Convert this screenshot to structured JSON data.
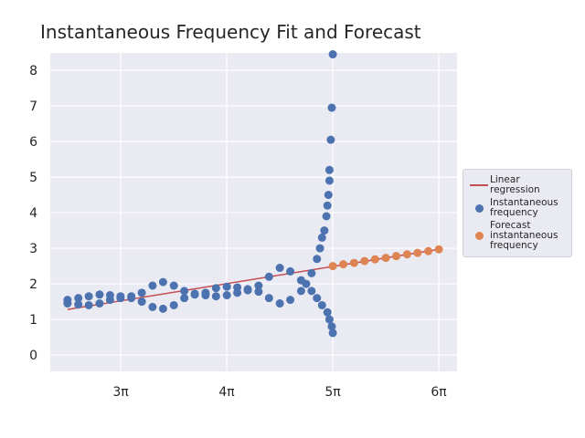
{
  "chart_data": {
    "type": "scatter",
    "title": "Instantaneous Frequency Fit and Forecast",
    "xlim": [
      7.339,
      19.39
    ],
    "ylim": [
      -0.46,
      8.49
    ],
    "xticks": [
      {
        "value": 9.4248,
        "label": "3π"
      },
      {
        "value": 12.5664,
        "label": "4π"
      },
      {
        "value": 15.708,
        "label": "5π"
      },
      {
        "value": 18.8496,
        "label": "6π"
      }
    ],
    "yticks": [
      0,
      1,
      2,
      3,
      4,
      5,
      6,
      7,
      8
    ],
    "grid": true,
    "legend": "right",
    "series": [
      {
        "name": "Linear regression",
        "type": "line",
        "color": "#c44e52",
        "x": [
          7.85,
          18.85
        ],
        "values": [
          1.28,
          2.97
        ]
      },
      {
        "name": "Instantaneous frequency",
        "type": "scatter",
        "color": "#4c72b0",
        "x": [
          7.85,
          8.17,
          8.48,
          8.8,
          9.11,
          9.42,
          9.74,
          10.05,
          10.37,
          10.68,
          11.0,
          11.31,
          11.62,
          11.94,
          12.25,
          12.57,
          12.88,
          13.19,
          13.51,
          13.82,
          14.14,
          14.45,
          14.77,
          14.92,
          7.85,
          8.17,
          8.48,
          8.8,
          9.11,
          9.42,
          9.74,
          10.05,
          10.37,
          10.68,
          11.0,
          11.31,
          11.62,
          11.94,
          12.25,
          12.57,
          12.88,
          13.19,
          13.51,
          13.82,
          14.14,
          14.45,
          14.77,
          15.08,
          15.24,
          15.33,
          15.39,
          15.46,
          15.52,
          15.55,
          15.58,
          15.61,
          15.61,
          15.65,
          15.68,
          15.71,
          15.08,
          15.24,
          15.39,
          15.55,
          15.61,
          15.68,
          15.71
        ],
        "values": [
          1.55,
          1.6,
          1.65,
          1.7,
          1.68,
          1.65,
          1.65,
          1.75,
          1.95,
          2.05,
          1.95,
          1.8,
          1.72,
          1.75,
          1.88,
          1.92,
          1.9,
          1.85,
          1.95,
          2.2,
          2.45,
          2.35,
          2.1,
          2.0,
          1.45,
          1.42,
          1.4,
          1.45,
          1.55,
          1.6,
          1.6,
          1.5,
          1.35,
          1.3,
          1.4,
          1.6,
          1.7,
          1.68,
          1.65,
          1.68,
          1.75,
          1.82,
          1.78,
          1.6,
          1.45,
          1.55,
          1.8,
          2.3,
          2.7,
          3.0,
          3.3,
          3.5,
          3.9,
          4.2,
          4.5,
          4.9,
          5.2,
          6.05,
          6.95,
          8.45,
          1.8,
          1.6,
          1.4,
          1.2,
          1.0,
          0.8,
          0.62
        ]
      },
      {
        "name": "Forecast instantaneous frequency",
        "type": "scatter",
        "color": "#dd8452",
        "x": [
          15.71,
          16.02,
          16.34,
          16.65,
          16.96,
          17.28,
          17.59,
          17.91,
          18.22,
          18.54,
          18.85
        ],
        "values": [
          2.5,
          2.55,
          2.59,
          2.64,
          2.69,
          2.73,
          2.78,
          2.83,
          2.87,
          2.92,
          2.97
        ]
      }
    ]
  }
}
